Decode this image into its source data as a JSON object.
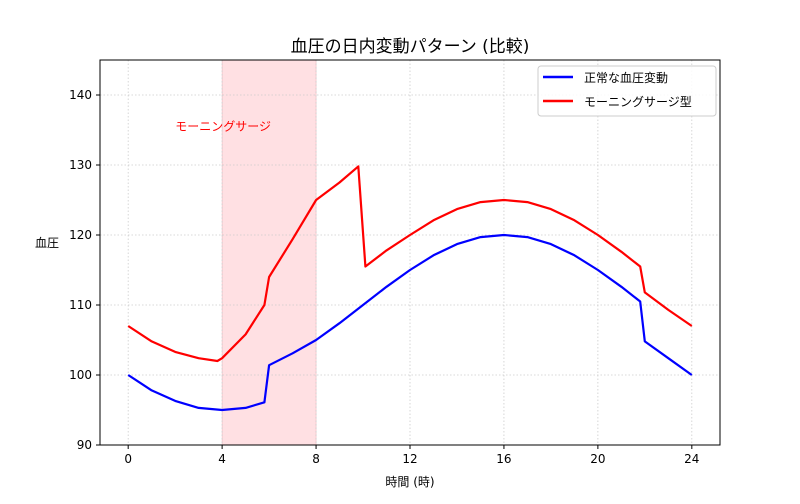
{
  "chart_data": {
    "type": "line",
    "title": "血圧の日内変動パターン (比較)",
    "xlabel": "時間 (時)",
    "ylabel": "血圧",
    "xlim": [
      -1.2,
      25.2
    ],
    "ylim": [
      90,
      145
    ],
    "xticks": [
      0,
      4,
      8,
      12,
      16,
      20,
      24
    ],
    "yticks": [
      90,
      100,
      110,
      120,
      130,
      140
    ],
    "grid": true,
    "legend_position": "top-right",
    "shaded_region": {
      "x_range": [
        4,
        8
      ],
      "color": "#ffe0e3",
      "label": "モーニングサージ",
      "label_color": "#ff0000",
      "label_position": [
        4,
        135.5
      ]
    },
    "series": [
      {
        "name": "正常な血圧変動",
        "color": "#0000ff",
        "x": [
          0,
          1,
          2,
          3,
          4,
          5,
          5.8,
          6,
          7,
          8,
          9,
          10,
          11,
          12,
          13,
          14,
          15,
          16,
          17,
          18,
          19,
          20,
          21,
          21.8,
          22,
          23,
          24
        ],
        "y": [
          100,
          97.8,
          96.3,
          95.3,
          95,
          95.3,
          96.1,
          101.4,
          103.1,
          105,
          107.4,
          110,
          112.6,
          115,
          117.1,
          118.7,
          119.7,
          120,
          119.7,
          118.7,
          117.1,
          115,
          112.6,
          110.5,
          104.8,
          102.4,
          100
        ]
      },
      {
        "name": "モーニングサージ型",
        "color": "#ff0000",
        "x": [
          0,
          1,
          2,
          3,
          3.8,
          4,
          5,
          5.8,
          6,
          7,
          8,
          9,
          9.8,
          10.1,
          11,
          12,
          13,
          14,
          15,
          16,
          17,
          18,
          19,
          20,
          21,
          21.8,
          22,
          23,
          24
        ],
        "y": [
          107,
          104.8,
          103.3,
          102.4,
          102,
          102.4,
          105.8,
          110,
          114,
          119.4,
          125,
          127.5,
          129.8,
          115.5,
          117.8,
          120,
          122.1,
          123.7,
          124.7,
          125,
          124.7,
          123.7,
          122.1,
          120,
          117.6,
          115.5,
          111.8,
          109.3,
          107
        ]
      }
    ]
  }
}
